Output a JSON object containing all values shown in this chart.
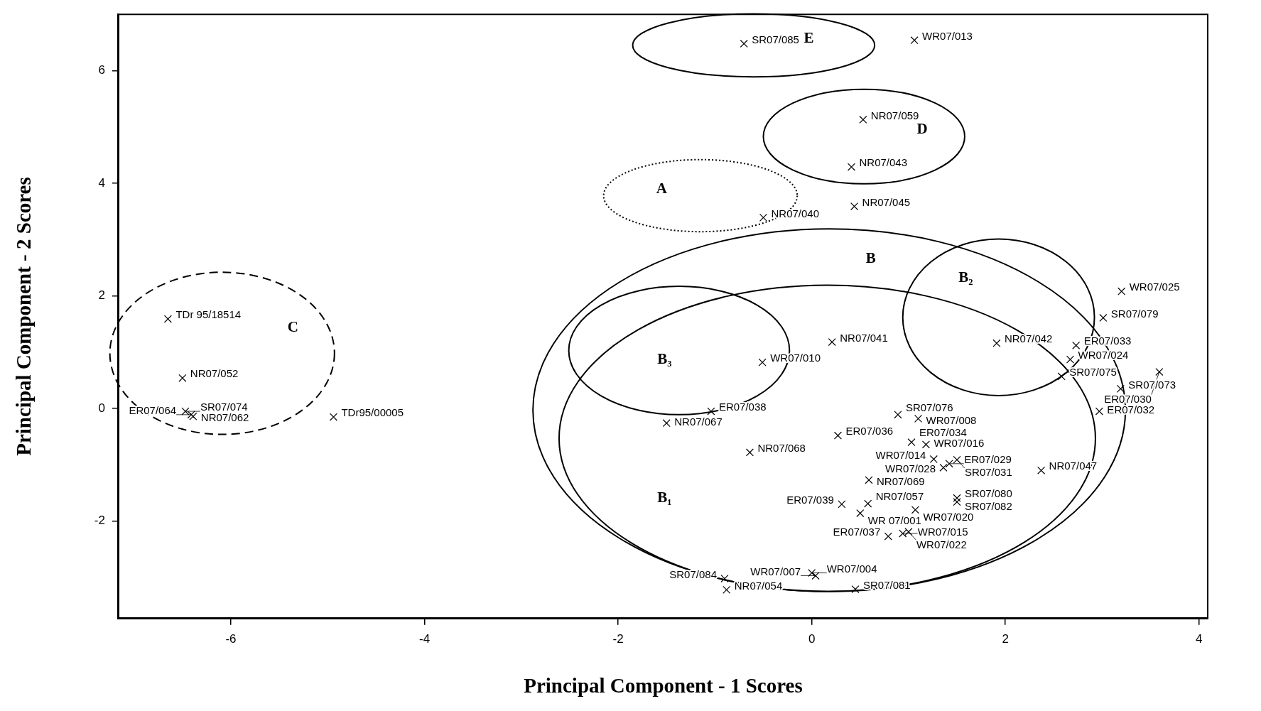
{
  "chart_data": {
    "type": "scatter",
    "xlabel": "Principal Component - 1 Scores",
    "ylabel": "Principal Component - 2 Scores",
    "xlim": [
      -7.16,
      4.09
    ],
    "ylim": [
      -3.73,
      7.0
    ],
    "xticks": [
      -6,
      -4,
      -2,
      0,
      2,
      4
    ],
    "yticks": [
      -2,
      0,
      2,
      4,
      6
    ],
    "grid": false,
    "legend": false,
    "marker": "cross",
    "series": [
      {
        "color": "#000000",
        "x": [
          -0.7,
          1.06,
          0.53,
          0.41,
          0.44,
          -0.5,
          3.2,
          3.01,
          0.21,
          1.91,
          2.73,
          2.67,
          2.58,
          3.59,
          3.19,
          2.97,
          -0.51,
          -6.65,
          -6.5,
          -6.47,
          -6.39,
          -6.41,
          -4.94,
          -1.04,
          -1.5,
          -0.64,
          0.27,
          0.89,
          1.1,
          1.03,
          1.18,
          1.26,
          1.42,
          1.5,
          1.36,
          2.37,
          0.59,
          1.5,
          0.31,
          0.58,
          1.5,
          1.07,
          0.5,
          0.94,
          1.0,
          0.79,
          0.0,
          0.04,
          -0.9,
          -0.88,
          0.45
        ],
        "values": [
          6.48,
          6.54,
          5.13,
          4.29,
          3.59,
          3.39,
          2.08,
          1.61,
          1.18,
          1.16,
          1.12,
          0.87,
          0.57,
          0.65,
          0.35,
          -0.05,
          0.82,
          1.59,
          0.54,
          -0.05,
          -0.14,
          -0.11,
          -0.15,
          -0.05,
          -0.26,
          -0.78,
          -0.48,
          -0.11,
          -0.18,
          -0.6,
          -0.64,
          -0.9,
          -0.98,
          -0.91,
          -1.05,
          -1.1,
          -1.27,
          -1.59,
          -1.7,
          -1.69,
          -1.66,
          -1.8,
          -1.86,
          -2.22,
          -2.19,
          -2.27,
          -2.92,
          -2.97,
          -3.02,
          -3.22,
          -3.21
        ],
        "value_labels": [
          "SR07/085",
          "WR07/013",
          "NR07/059",
          "NR07/043",
          "NR07/045",
          "NR07/040",
          "WR07/025",
          "SR07/079",
          "NR07/041",
          "NR07/042",
          "ER07/033",
          "WR07/024",
          "SR07/075",
          "ER07/030",
          "SR07/073",
          "ER07/032",
          "WR07/010",
          "TDr 95/18514",
          "NR07/052",
          "SR07/074",
          "NR07/062",
          "ER07/064",
          "TDr95/00005",
          "ER07/038",
          "NR07/067",
          "NR07/068",
          "ER07/036",
          "SR07/076",
          "WR07/008",
          "ER07/034",
          "WR07/016",
          "WR07/014",
          "ER07/029",
          "SR07/031",
          "WR07/028",
          "NR07/047",
          "NR07/069",
          "SR07/080",
          "ER07/039",
          "NR07/057",
          "SR07/082",
          "WR07/020",
          "WR 07/001",
          "WR07/015",
          "WR07/022",
          "ER07/037",
          "WR07/004",
          "WR07/007",
          "SR07/084",
          "NR07/054",
          "SR07/081"
        ]
      }
    ],
    "annotations": [
      "A",
      "B",
      "B₂",
      "B₃",
      "B₁",
      "C",
      "D",
      "E"
    ]
  }
}
